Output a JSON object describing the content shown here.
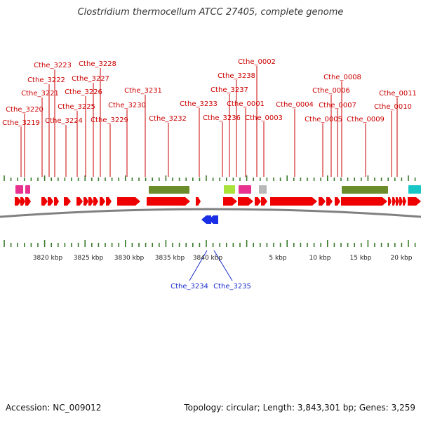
{
  "title": "Clostridium thermocellum ATCC 27405, complete genome",
  "footer": {
    "accession": "Accession: NC_009012",
    "topology": "Topology: circular; Length: 3,843,301 bp; Genes: 3,259"
  },
  "colors": {
    "forward_gene": "#ee0000",
    "reverse_gene": "#1a2ee6",
    "label_red": "#cc0000",
    "label_blue": "#1a2ecc",
    "tick": "#3a7a2a",
    "backbone": "#808080",
    "olive": "#6b8c2a",
    "magenta": "#e8308f",
    "lime": "#a8e23a",
    "gray": "#b8b8b8",
    "cyan": "#18c6c6"
  },
  "scale_labels": [
    "3820 kbp",
    "3825 kbp",
    "3830 kbp",
    "3835 kbp",
    "3840 kbp",
    "5 kbp",
    "10 kbp",
    "15 kbp",
    "20 kbp"
  ],
  "gene_labels_top": [
    "Cthe_3219",
    "Cthe_3220",
    "Cthe_3221",
    "Cthe_3222",
    "Cthe_3223",
    "Cthe_3224",
    "Cthe_3225",
    "Cthe_3226",
    "Cthe_3227",
    "Cthe_3228",
    "Cthe_3229",
    "Cthe_3230",
    "Cthe_3231",
    "Cthe_3232",
    "Cthe_3233",
    "Cthe_3236",
    "Cthe_3237",
    "Cthe_3238",
    "Cthe_0001",
    "Cthe_0002",
    "Cthe_0003",
    "Cthe_0004",
    "Cthe_0005",
    "Cthe_0006",
    "Cthe_0007",
    "Cthe_0008",
    "Cthe_0009",
    "Cthe_0010",
    "Cthe_0011"
  ],
  "gene_labels_bottom": [
    "Cthe_3234",
    "Cthe_3235"
  ]
}
